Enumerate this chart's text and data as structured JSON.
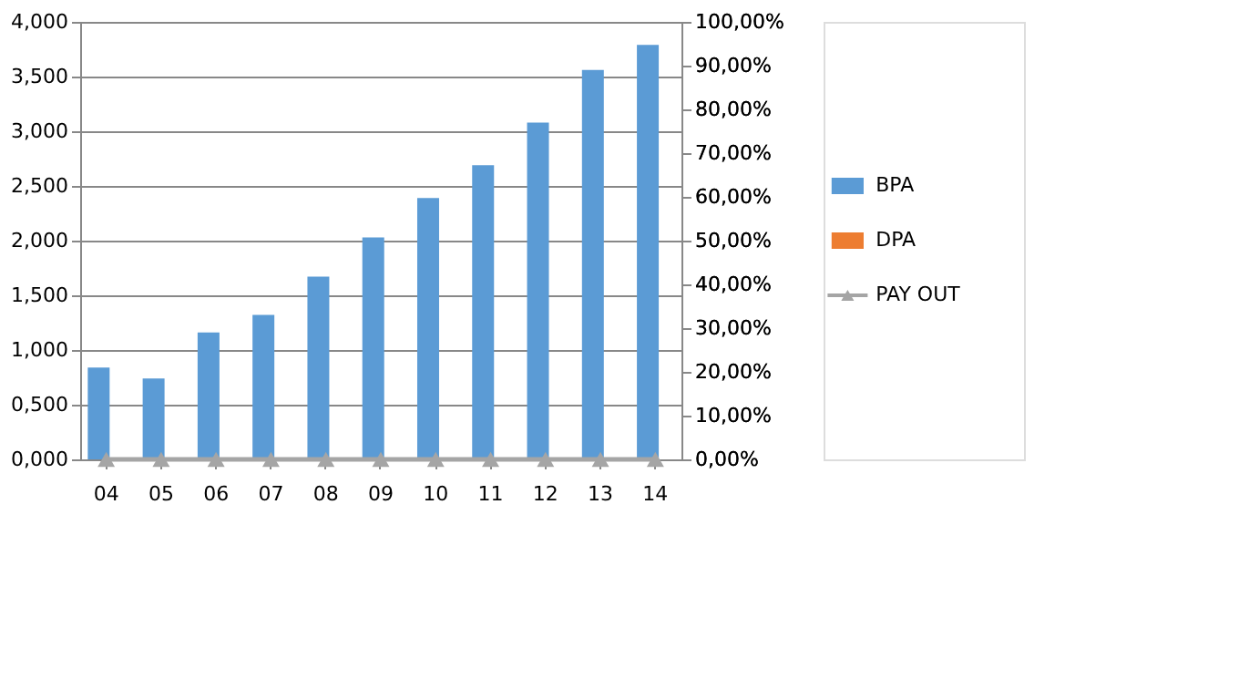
{
  "chart_data": {
    "type": "bar",
    "categories": [
      "04",
      "05",
      "06",
      "07",
      "08",
      "09",
      "10",
      "11",
      "12",
      "13",
      "14"
    ],
    "series": [
      {
        "name": "BPA",
        "color": "#5b9bd5",
        "values": [
          0.84,
          0.74,
          1.16,
          1.32,
          1.67,
          2.03,
          2.39,
          2.69,
          3.08,
          3.56,
          3.79
        ]
      },
      {
        "name": "DPA",
        "color": "#ed7d31",
        "values": [
          0,
          0,
          0,
          0,
          0,
          0,
          0,
          0,
          0,
          0,
          0
        ]
      },
      {
        "name": "PAY OUT",
        "color": "#a5a5a5",
        "type": "line",
        "axis": "y2",
        "marker": "triangle",
        "line_style": "solid",
        "values": [
          0,
          0,
          0,
          0,
          0,
          0,
          0,
          0,
          0,
          0,
          0
        ]
      }
    ],
    "ylim": [
      0,
      4
    ],
    "yticks": [
      {
        "value": 0,
        "label": "0,000"
      },
      {
        "value": 0.5,
        "label": "0,500"
      },
      {
        "value": 1,
        "label": "1,000"
      },
      {
        "value": 1.5,
        "label": "1,500"
      },
      {
        "value": 2,
        "label": "2,000"
      },
      {
        "value": 2.5,
        "label": "2,500"
      },
      {
        "value": 3,
        "label": "3,000"
      },
      {
        "value": 3.5,
        "label": "3,500"
      },
      {
        "value": 4,
        "label": "4,000"
      }
    ],
    "y2lim": [
      0,
      100
    ],
    "y2ticks": [
      {
        "value": 0,
        "label": "0,00%"
      },
      {
        "value": 10,
        "label": "10,00%"
      },
      {
        "value": 20,
        "label": "20,00%"
      },
      {
        "value": 30,
        "label": "30,00%"
      },
      {
        "value": 40,
        "label": "40,00%"
      },
      {
        "value": 50,
        "label": "50,00%"
      },
      {
        "value": 60,
        "label": "60,00%"
      },
      {
        "value": 70,
        "label": "70,00%"
      },
      {
        "value": 80,
        "label": "80,00%"
      },
      {
        "value": 90,
        "label": "90,00%"
      },
      {
        "value": 100,
        "label": "100,00%"
      }
    ],
    "grid": "y",
    "legend": "right"
  }
}
